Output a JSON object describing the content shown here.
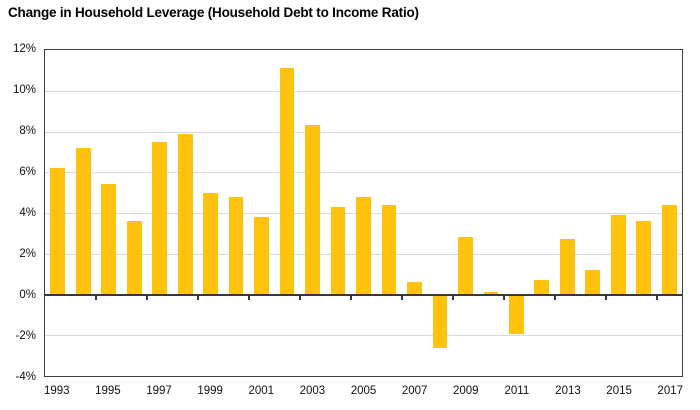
{
  "title": "Change in Household Leverage (Household Debt to Income Ratio)",
  "chart_data": {
    "type": "bar",
    "title": "Change in Household Leverage (Household Debt to Income Ratio)",
    "categories": [
      "1993",
      "1994",
      "1995",
      "1996",
      "1997",
      "1998",
      "1999",
      "2000",
      "2001",
      "2002",
      "2003",
      "2004",
      "2005",
      "2006",
      "2007",
      "2008",
      "2009",
      "2010",
      "2011",
      "2012",
      "2013",
      "2014",
      "2015",
      "2016",
      "2017"
    ],
    "values": [
      6.2,
      7.2,
      5.4,
      3.6,
      7.5,
      7.9,
      5.0,
      4.8,
      3.8,
      11.1,
      8.3,
      4.3,
      4.8,
      4.4,
      0.6,
      -2.6,
      2.8,
      0.1,
      -1.9,
      0.7,
      2.7,
      1.2,
      3.9,
      3.6,
      4.4
    ],
    "value_unit": "%",
    "ylim": [
      -4,
      12
    ],
    "ytick_step": 2,
    "ytick_labels": [
      "12%",
      "10%",
      "8%",
      "6%",
      "4%",
      "2%",
      "0%",
      "-2%",
      "-4%"
    ],
    "xtick_labels": [
      "1993",
      "1995",
      "1997",
      "1999",
      "2001",
      "2003",
      "2005",
      "2007",
      "2009",
      "2011",
      "2013",
      "2015",
      "2017"
    ],
    "xtick_every_n_categories": 2,
    "bar_color": "#FFC20E",
    "gridline_color": "#d9d9d9",
    "axis_frame_color": "#3f3f3f",
    "grid": "horizontal",
    "legend": "none",
    "xlabel": "",
    "ylabel": ""
  }
}
